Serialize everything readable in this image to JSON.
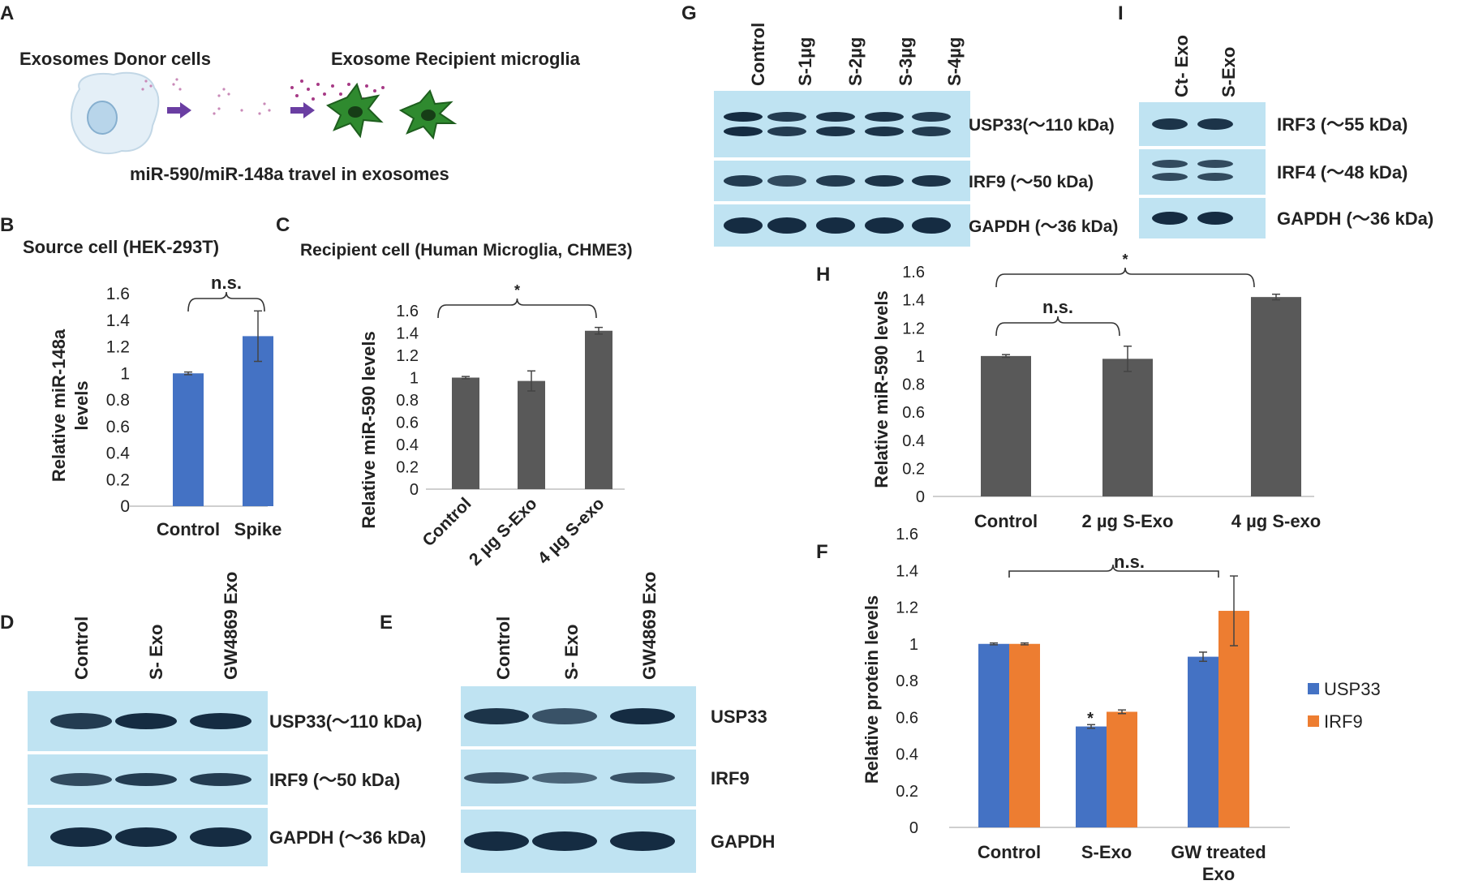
{
  "panels": {
    "A": {
      "letter": "A",
      "donor_label": "Exosomes Donor cells",
      "recipient_label": "Exosome Recipient microglia",
      "caption": "miR-590/miR-148a travel in exosomes"
    },
    "D": {
      "letter": "D",
      "lanes": [
        "Control",
        "S- Exo",
        "GW4869 Exo"
      ],
      "bands": [
        "USP33(～110 kDa)",
        "IRF9 (～50 kDa)",
        "GAPDH (～36 kDa)"
      ]
    },
    "E": {
      "letter": "E",
      "lanes": [
        "Control",
        "S- Exo",
        "GW4869 Exo"
      ],
      "bands": [
        "USP33",
        "IRF9",
        "GAPDH"
      ]
    },
    "G": {
      "letter": "G",
      "lanes": [
        "Control",
        "S-1µg",
        "S-2µg",
        "S-3µg",
        "S-4µg"
      ],
      "bands": [
        "USP33(～110 kDa)",
        "IRF9 (～50 kDa)",
        "GAPDH (～36 kDa)"
      ]
    },
    "I": {
      "letter": "I",
      "lanes": [
        "Ct- Exo",
        "S-Exo"
      ],
      "bands": [
        "IRF3 (～55 kDa)",
        "IRF4 (～48 kDa)",
        "GAPDH (～36 kDa)"
      ]
    }
  },
  "colors": {
    "blue": "#4472c4",
    "gray": "#595959",
    "orange": "#ed7d31",
    "blot_bg": "#bfe3f2"
  },
  "chart_data": [
    {
      "id": "B",
      "letter": "B",
      "type": "bar",
      "title": "Source cell (HEK-293T)",
      "xlabel": "",
      "ylabel": "Relative miR-148a levels",
      "ylabel_lines": [
        "Relative miR-148a",
        "levels"
      ],
      "categories": [
        "Control",
        "Spike"
      ],
      "series": [
        {
          "values": [
            1.0,
            1.28
          ],
          "errors": [
            0.01,
            0.19
          ]
        }
      ],
      "ylim": [
        0,
        1.6
      ],
      "yticks": [
        "0",
        "0.2",
        "0.4",
        "0.6",
        "0.8",
        "1",
        "1.2",
        "1.4",
        "1.6"
      ],
      "annotations": [
        {
          "text": "n.s.",
          "from": 0,
          "to": 1
        }
      ],
      "grid": false
    },
    {
      "id": "C",
      "letter": "C",
      "type": "bar",
      "title": "Recipient cell (Human Microglia, CHME3)",
      "xlabel": "",
      "ylabel": "Relative miR-590 levels",
      "categories": [
        "Control",
        "2 µg S-Exo",
        "4  µg S-exo"
      ],
      "series": [
        {
          "values": [
            1.0,
            0.97,
            1.42
          ],
          "errors": [
            0.01,
            0.09,
            0.03
          ]
        }
      ],
      "ylim": [
        0,
        1.6
      ],
      "yticks": [
        "0",
        "0.2",
        "0.4",
        "0.6",
        "0.8",
        "1",
        "1.2",
        "1.4",
        "1.6"
      ],
      "annotations": [
        {
          "text": "*",
          "from": 0,
          "to": 2
        }
      ],
      "grid": false
    },
    {
      "id": "H",
      "letter": "H",
      "type": "bar",
      "title": "",
      "xlabel": "",
      "ylabel": "Relative miR-590 levels",
      "categories": [
        "Control",
        "2 µg S-Exo",
        "4  µg S-exo"
      ],
      "series": [
        {
          "values": [
            1.0,
            0.98,
            1.42
          ],
          "errors": [
            0.01,
            0.09,
            0.02
          ]
        }
      ],
      "ylim": [
        0,
        1.6
      ],
      "yticks": [
        "0",
        "0.2",
        "0.4",
        "0.6",
        "0.8",
        "1",
        "1.2",
        "1.4",
        "1.6"
      ],
      "annotations": [
        {
          "text": "n.s.",
          "from": 0,
          "to": 1
        },
        {
          "text": "*",
          "from": 0,
          "to": 2
        }
      ],
      "grid": false
    },
    {
      "id": "F",
      "letter": "F",
      "type": "bar",
      "title": "",
      "xlabel": "",
      "ylabel": "Relative protein levels",
      "categories": [
        "Control",
        "S-Exo",
        "GW treated Exo"
      ],
      "series": [
        {
          "name": "USP33",
          "values": [
            1.0,
            0.55,
            0.93
          ],
          "errors": [
            0.005,
            0.01,
            0.025
          ]
        },
        {
          "name": "IRF9",
          "values": [
            1.0,
            0.63,
            1.18
          ],
          "errors": [
            0.005,
            0.01,
            0.19
          ]
        }
      ],
      "ylim": [
        0,
        1.6
      ],
      "yticks": [
        "0",
        "0.2",
        "0.4",
        "0.6",
        "0.8",
        "1",
        "1.2",
        "1.4",
        "1.6"
      ],
      "annotations": [
        {
          "text": "n.s.",
          "from": 0,
          "to": 2
        },
        {
          "text": "*",
          "over": "S-Exo USP33"
        }
      ],
      "legend": "right",
      "grid": false
    }
  ]
}
